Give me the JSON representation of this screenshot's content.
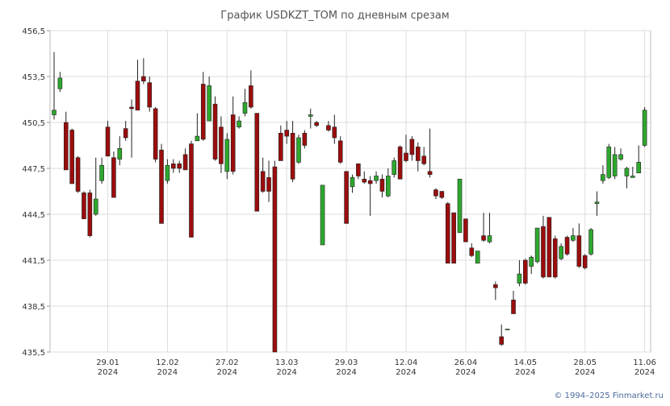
{
  "chart_data": {
    "type": "candlestick",
    "title": "График USDKZT_TOM по дневным срезам",
    "footer": "© 1994–2025 Finmarket.ru",
    "up_color": "#2ea82e",
    "down_color": "#9b0d0d",
    "grid": true,
    "ylim": [
      435.5,
      456.5
    ],
    "yticks": [
      {
        "value": 435.5,
        "label": "435,5"
      },
      {
        "value": 438.5,
        "label": "438,5"
      },
      {
        "value": 441.5,
        "label": "441,5"
      },
      {
        "value": 444.5,
        "label": "444,5"
      },
      {
        "value": 447.5,
        "label": "447,5"
      },
      {
        "value": 450.5,
        "label": "450,5"
      },
      {
        "value": 453.5,
        "label": "453,5"
      },
      {
        "value": 456.5,
        "label": "456,5"
      }
    ],
    "categories": [
      null,
      null,
      null,
      null,
      null,
      null,
      null,
      null,
      null,
      "29.01\n2024",
      null,
      null,
      null,
      null,
      null,
      null,
      null,
      null,
      null,
      "12.02\n2024",
      null,
      null,
      null,
      null,
      null,
      null,
      null,
      null,
      null,
      "27.02\n2024",
      null,
      null,
      null,
      null,
      null,
      null,
      null,
      null,
      null,
      "13.03\n2024",
      null,
      null,
      null,
      null,
      null,
      null,
      null,
      null,
      null,
      "29.03\n2024",
      null,
      null,
      null,
      null,
      null,
      null,
      null,
      null,
      null,
      "12.04\n2024",
      null,
      null,
      null,
      null,
      null,
      null,
      null,
      null,
      null,
      "26.04\n2024",
      null,
      null,
      null,
      null,
      null,
      null,
      null,
      null,
      null,
      "14.05\n2024",
      null,
      null,
      null,
      null,
      null,
      null,
      null,
      null,
      null,
      "28.05\n2024",
      null,
      null,
      null,
      null,
      null,
      null,
      null,
      null,
      null,
      "11.06\n2024"
    ],
    "open": [
      451.0,
      452.7,
      450.5,
      450.0,
      448.2,
      445.9,
      445.9,
      444.5,
      446.7,
      450.2,
      448.2,
      448.1,
      450.1,
      451.5,
      453.2,
      453.5,
      453.1,
      451.4,
      448.7,
      446.7,
      447.8,
      447.8,
      448.4,
      449.1,
      449.3,
      453.0,
      450.6,
      451.7,
      450.2,
      447.3,
      451.0,
      450.2,
      451.1,
      452.9,
      451.1,
      447.3,
      446.9,
      447.6,
      449.8,
      450.0,
      449.8,
      447.9,
      449.8,
      450.9,
      450.5,
      442.5,
      450.3,
      450.2,
      449.3,
      447.3,
      446.3,
      447.8,
      446.8,
      446.7,
      446.7,
      446.8,
      445.7,
      447.1,
      448.9,
      448.5,
      449.4,
      448.9,
      448.3,
      447.3,
      446.1,
      446.0,
      445.2,
      444.6,
      443.3,
      444.2,
      442.3,
      441.3,
      443.1,
      442.7,
      439.9,
      436.5,
      437.0,
      438.9,
      440.0,
      441.5,
      441.1,
      441.4,
      443.7,
      444.3,
      442.9,
      441.6,
      443.0,
      442.8,
      443.1,
      441.8,
      441.9,
      445.2,
      446.7,
      446.9,
      447.0,
      448.1,
      447.0,
      446.9,
      447.2,
      449.0
    ],
    "high": [
      455.1,
      453.8,
      451.2,
      450.1,
      448.3,
      446.0,
      446.1,
      448.2,
      448.2,
      450.6,
      448.6,
      449.6,
      450.6,
      452.0,
      454.6,
      454.7,
      453.5,
      451.5,
      449.1,
      448.1,
      448.1,
      448.0,
      448.8,
      449.3,
      451.1,
      453.8,
      453.5,
      452.2,
      450.9,
      449.8,
      452.2,
      450.9,
      452.7,
      453.9,
      451.1,
      448.2,
      448.0,
      448.0,
      450.3,
      450.6,
      450.6,
      449.7,
      450.0,
      451.4,
      450.6,
      446.4,
      450.6,
      451.0,
      449.6,
      447.3,
      447.1,
      447.8,
      447.3,
      447.0,
      447.3,
      447.1,
      447.5,
      448.2,
      449.0,
      449.7,
      449.6,
      449.2,
      448.9,
      450.1,
      446.2,
      446.0,
      445.3,
      444.6,
      446.8,
      444.2,
      442.6,
      442.1,
      444.6,
      444.6,
      440.1,
      437.3,
      437.0,
      439.5,
      441.5,
      441.6,
      441.8,
      443.6,
      444.4,
      444.3,
      443.1,
      442.6,
      443.1,
      443.6,
      443.9,
      441.9,
      443.6,
      446.0,
      447.7,
      449.1,
      448.9,
      448.8,
      447.6,
      447.6,
      449.0,
      451.5
    ],
    "low": [
      450.7,
      452.5,
      447.4,
      446.5,
      445.9,
      444.2,
      443.0,
      444.4,
      446.5,
      448.3,
      445.6,
      447.7,
      449.3,
      448.2,
      451.3,
      453.0,
      451.2,
      447.9,
      443.9,
      446.5,
      447.2,
      447.2,
      447.4,
      443.0,
      449.3,
      449.3,
      450.6,
      448.0,
      447.2,
      446.8,
      447.1,
      450.1,
      450.9,
      451.4,
      444.7,
      445.9,
      445.3,
      435.5,
      448.0,
      449.1,
      446.6,
      447.8,
      448.8,
      450.1,
      450.2,
      442.5,
      449.9,
      449.1,
      447.8,
      443.9,
      445.9,
      446.8,
      446.5,
      444.4,
      446.5,
      445.6,
      445.6,
      446.9,
      446.8,
      447.9,
      448.0,
      447.3,
      447.7,
      446.9,
      445.5,
      445.5,
      441.3,
      441.3,
      443.3,
      442.7,
      441.7,
      441.3,
      442.7,
      442.6,
      438.9,
      435.9,
      437.0,
      438.0,
      439.8,
      439.9,
      440.6,
      441.3,
      440.3,
      440.4,
      440.3,
      441.5,
      441.8,
      442.7,
      441.0,
      440.9,
      441.8,
      444.4,
      446.5,
      446.8,
      446.8,
      448.0,
      446.2,
      446.9,
      447.2,
      448.9
    ],
    "close": [
      451.3,
      453.4,
      447.4,
      446.5,
      446.0,
      444.2,
      443.1,
      445.5,
      447.7,
      448.3,
      445.6,
      448.8,
      449.5,
      451.4,
      451.3,
      453.2,
      451.5,
      448.1,
      443.9,
      447.7,
      447.5,
      447.5,
      447.4,
      443.0,
      449.6,
      449.4,
      452.9,
      448.1,
      447.8,
      449.4,
      447.3,
      450.6,
      451.8,
      451.5,
      444.7,
      446.0,
      446.0,
      435.5,
      448.0,
      449.6,
      446.8,
      449.5,
      449.0,
      451.0,
      450.3,
      446.4,
      450.0,
      449.5,
      447.9,
      443.9,
      446.9,
      447.0,
      446.6,
      446.5,
      447.0,
      446.0,
      447.0,
      448.0,
      446.8,
      448.0,
      448.4,
      448.0,
      447.8,
      447.1,
      445.7,
      445.6,
      441.3,
      441.3,
      446.8,
      442.7,
      441.8,
      442.1,
      442.8,
      443.1,
      439.7,
      436.0,
      437.0,
      438.0,
      440.6,
      440.0,
      441.7,
      443.6,
      440.4,
      440.4,
      440.4,
      442.4,
      441.9,
      443.1,
      441.1,
      441.0,
      443.5,
      445.3,
      447.1,
      448.9,
      448.4,
      448.4,
      447.5,
      447.0,
      447.9,
      451.3
    ]
  }
}
